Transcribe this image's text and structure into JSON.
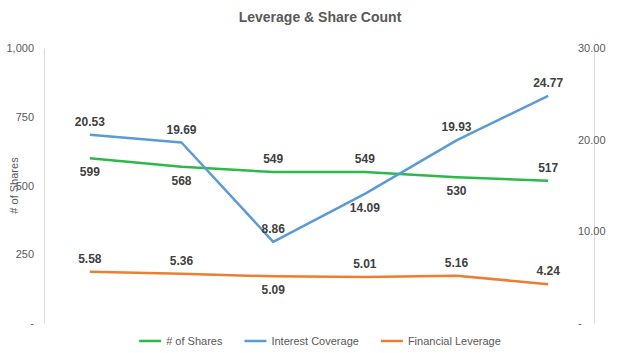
{
  "chart_data": {
    "type": "line",
    "title": "Leverage & Share Count",
    "categories": [
      null,
      null,
      null,
      null,
      null,
      null
    ],
    "y_label": "# of Shares",
    "ylim": [
      0,
      1000
    ],
    "yticks": [
      {
        "value": 0,
        "label": "-"
      },
      250,
      500,
      750,
      {
        "value": 1000,
        "label": "1,000"
      }
    ],
    "y2lim": [
      0,
      30
    ],
    "y2ticks": [
      {
        "value": 0,
        "label": "-"
      },
      {
        "value": 10,
        "label": "10.00"
      },
      {
        "value": 20,
        "label": "20.00"
      },
      {
        "value": 30,
        "label": "30.00"
      }
    ],
    "series": [
      {
        "name": "# of Shares",
        "color": "#2eb84b",
        "values": [
          599,
          568,
          549,
          549,
          530,
          517
        ]
      },
      {
        "name": "Interest Coverage",
        "color": "#5b9bd5",
        "axis": "y2",
        "values": [
          20.53,
          19.69,
          8.86,
          14.09,
          19.93,
          24.77
        ]
      },
      {
        "name": "Financial Leverage",
        "color": "#ed7d31",
        "axis": "y2",
        "values": [
          5.58,
          5.36,
          5.09,
          5.01,
          5.16,
          4.24
        ]
      }
    ],
    "data_labels": true,
    "legend": "bottom"
  }
}
